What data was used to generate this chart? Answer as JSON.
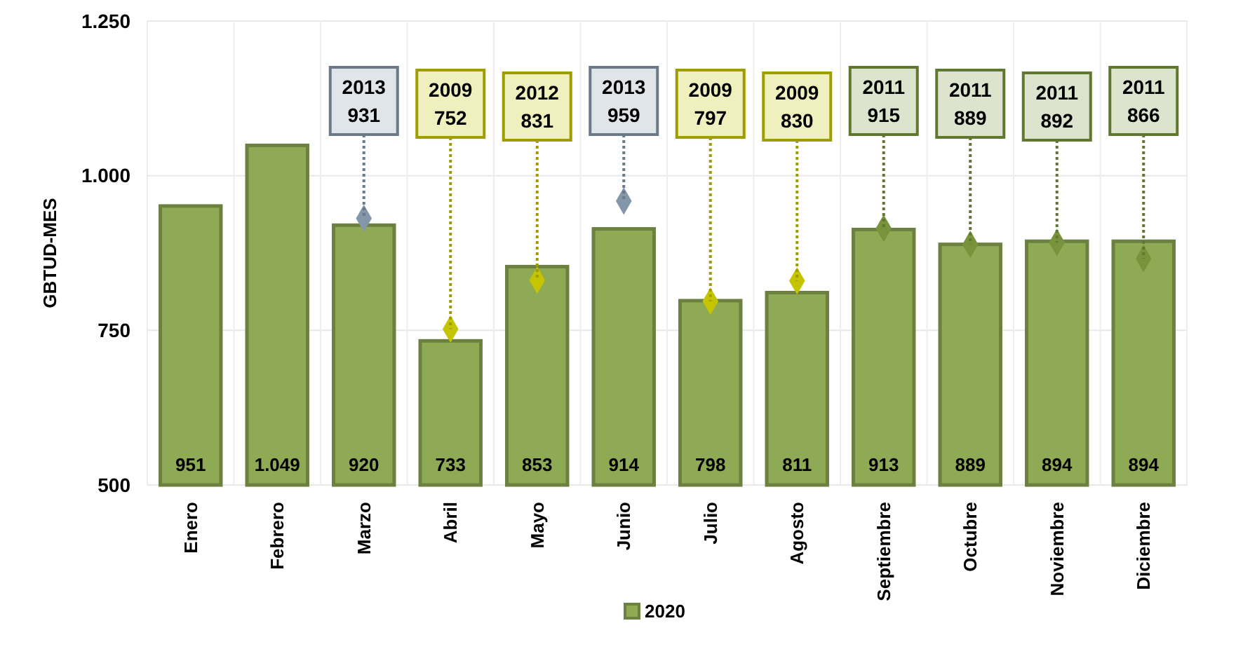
{
  "chart_data": {
    "type": "bar",
    "ylabel": "GBTUD-MES",
    "categories": [
      "Enero",
      "Febrero",
      "Marzo",
      "Abril",
      "Mayo",
      "Junio",
      "Julio",
      "Agosto",
      "Septiembre",
      "Octubre",
      "Noviembre",
      "Diciembre"
    ],
    "series": [
      {
        "name": "2020",
        "color": "#8faa55",
        "values": [
          951,
          1049,
          920,
          733,
          853,
          914,
          798,
          811,
          913,
          889,
          894,
          894
        ],
        "value_labels": [
          "951",
          "1.049",
          "920",
          "733",
          "853",
          "914",
          "798",
          "811",
          "913",
          "889",
          "894",
          "894"
        ]
      },
      {
        "type": "scatter",
        "marker": "diamond",
        "colors": [
          null,
          null,
          "#8496a9",
          "#c4c400",
          "#c4c400",
          "#8496a9",
          "#c4c400",
          "#c4c400",
          "#77933c",
          "#77933c",
          "#77933c",
          "#77933c"
        ],
        "values": [
          null,
          null,
          931,
          752,
          831,
          959,
          797,
          830,
          915,
          889,
          892,
          866
        ]
      }
    ],
    "annotations": [
      {
        "text": "2013 931",
        "x": "Marzo",
        "y": 931
      },
      {
        "text": "2009 752",
        "x": "Abril",
        "y": 752
      },
      {
        "text": "2012 831",
        "x": "Mayo",
        "y": 831
      },
      {
        "text": "2013 959",
        "x": "Junio",
        "y": 959
      },
      {
        "text": "2009 797",
        "x": "Julio",
        "y": 797
      },
      {
        "text": "2009 830",
        "x": "Agosto",
        "y": 830
      },
      {
        "text": "2011 915",
        "x": "Septiembre",
        "y": 915
      },
      {
        "text": "2011 889",
        "x": "Octubre",
        "y": 889
      },
      {
        "text": "2011 892",
        "x": "Noviembre",
        "y": 892
      },
      {
        "text": "2011 866",
        "x": "Diciembre",
        "y": 866
      }
    ],
    "ylim": [
      500,
      1250
    ],
    "yticks": [
      500,
      750,
      {
        "value": 1000,
        "label": "1.000"
      },
      {
        "value": 1250,
        "label": "1.250"
      }
    ],
    "grid": true,
    "legend": "bottom"
  }
}
